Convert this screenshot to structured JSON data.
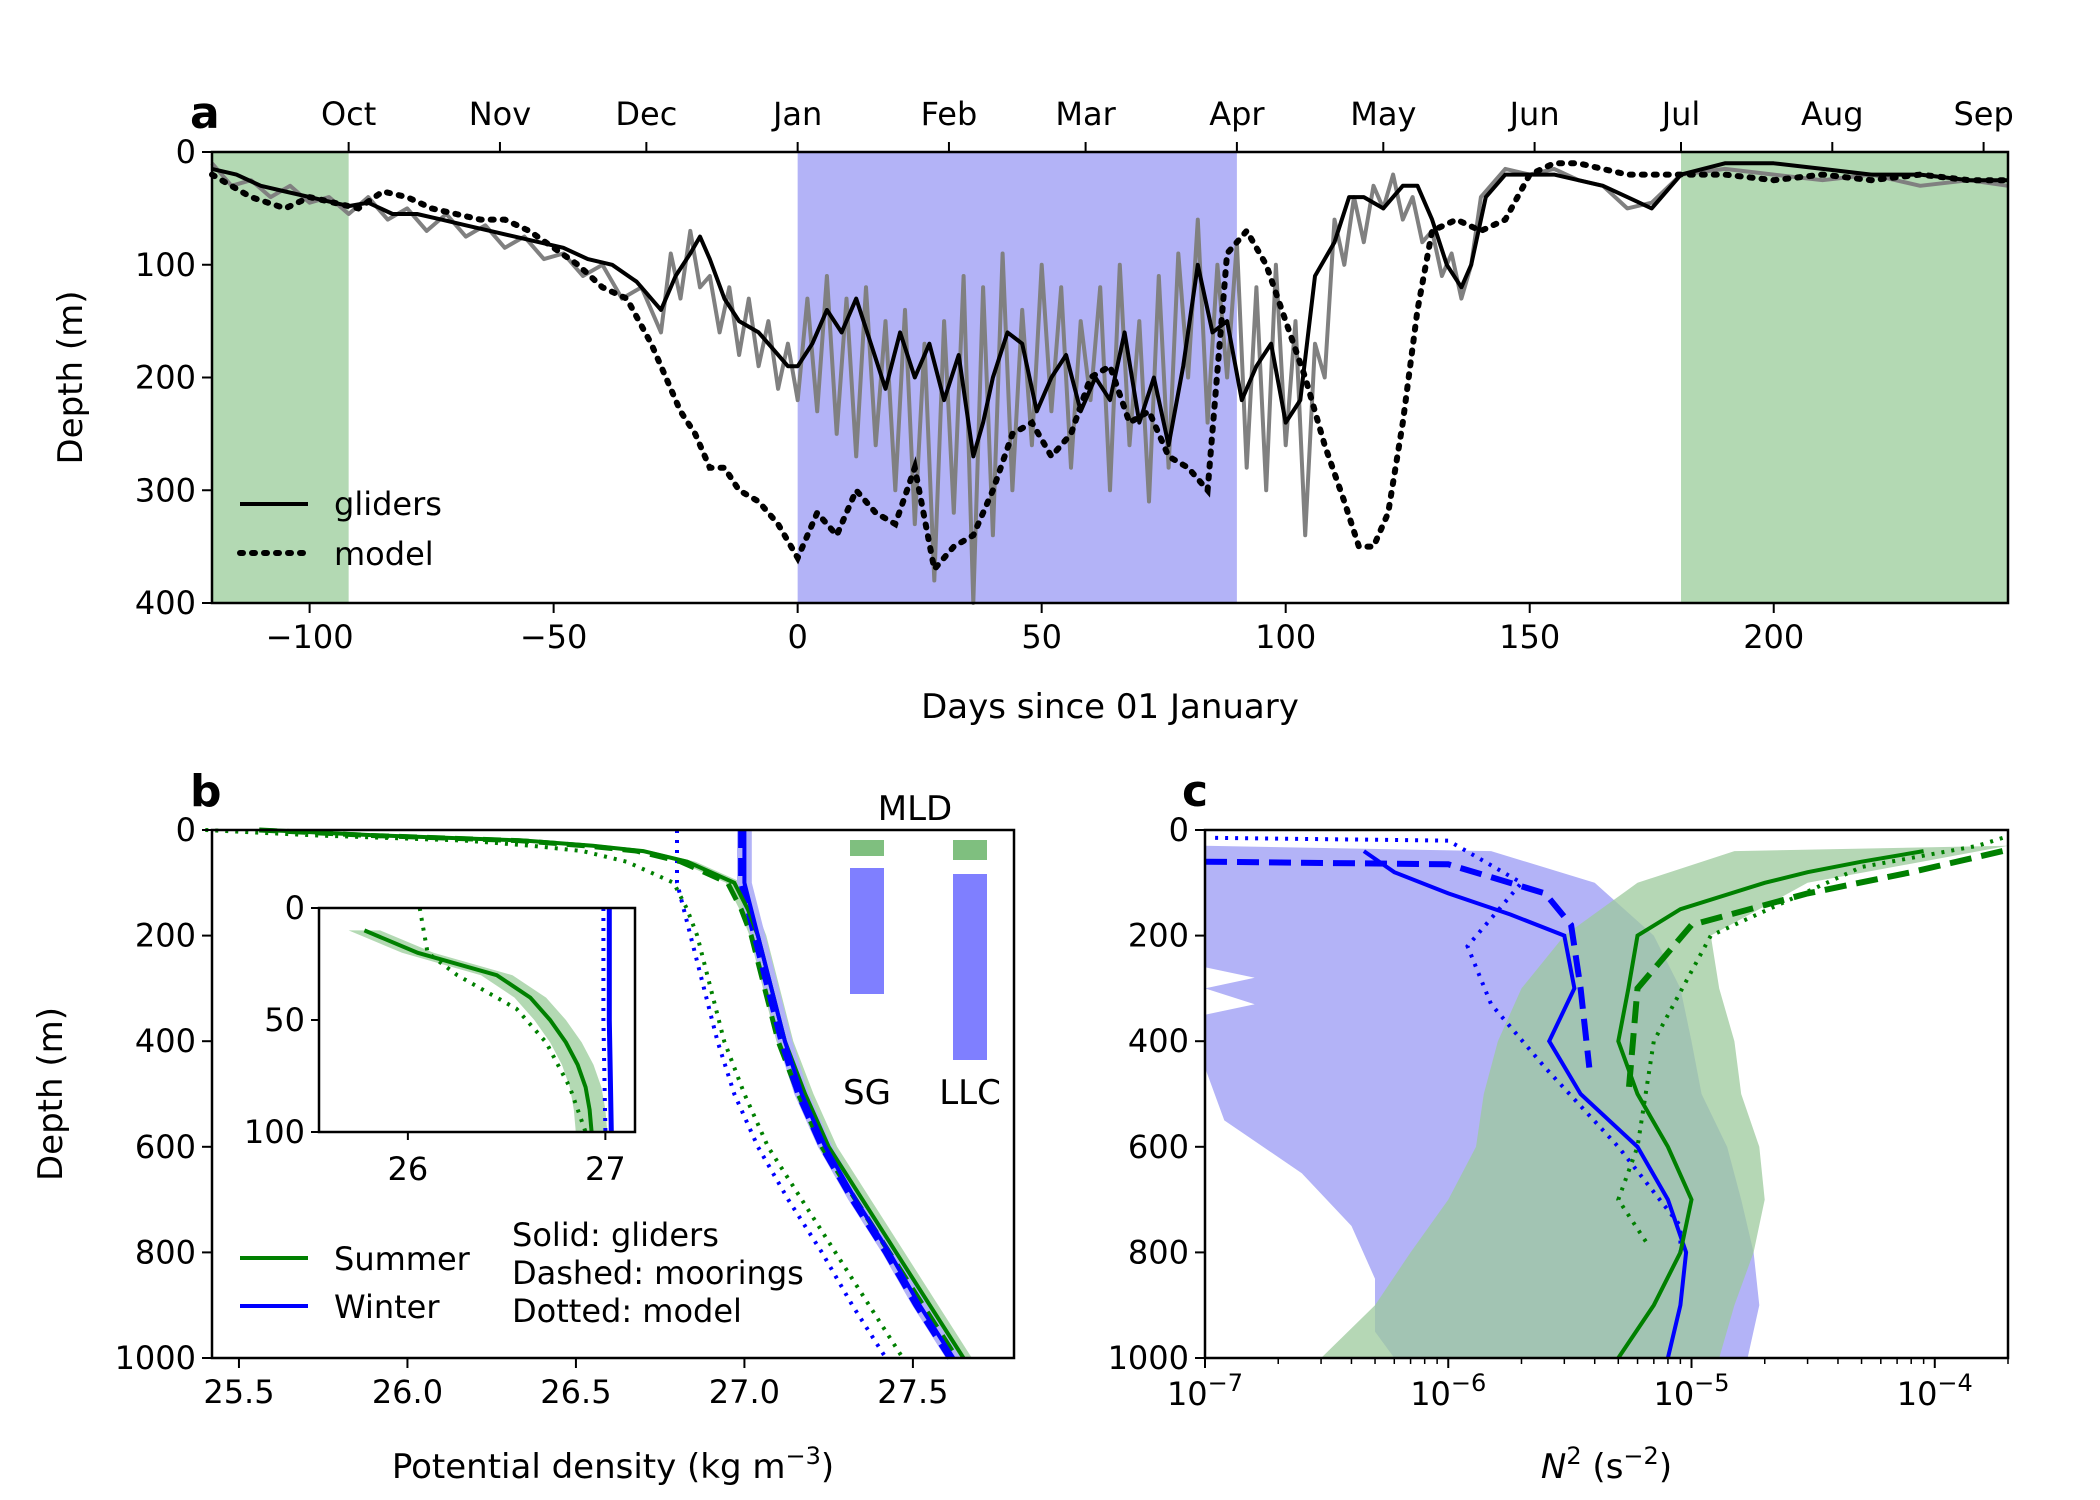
{
  "chart_data": [
    {
      "id": "a",
      "panel_label": "a",
      "type": "line",
      "xlabel": "Days since 01 January",
      "ylabel": "Depth (m)",
      "xlim": [
        -120,
        248
      ],
      "ylim": [
        400,
        0
      ],
      "xticks": [
        -100,
        -50,
        0,
        50,
        100,
        150,
        200
      ],
      "yticks": [
        0,
        100,
        200,
        300,
        400
      ],
      "top_axis": {
        "labels": [
          "Oct",
          "Nov",
          "Dec",
          "Jan",
          "Feb",
          "Mar",
          "Apr",
          "May",
          "Jun",
          "Jul",
          "Aug",
          "Sep"
        ],
        "days": [
          -92,
          -61,
          -31,
          0,
          31,
          59,
          90,
          120,
          151,
          181,
          212,
          243
        ]
      },
      "shaded_periods": [
        {
          "start": -120,
          "end": -92,
          "color": "#b3d9b3"
        },
        {
          "start": 0,
          "end": 90,
          "color": "#b3b3f7"
        },
        {
          "start": 181,
          "end": 248,
          "color": "#b3d9b3"
        }
      ],
      "legend_position": "lower left",
      "series": [
        {
          "name": "gliders",
          "style": "solid",
          "color": "#000000",
          "x": [
            -120,
            -115,
            -110,
            -105,
            -100,
            -95,
            -92,
            -88,
            -83,
            -78,
            -73,
            -68,
            -63,
            -58,
            -53,
            -48,
            -43,
            -38,
            -33,
            -28,
            -25,
            -22,
            -20,
            -18,
            -15,
            -12,
            -8,
            -5,
            -2,
            0,
            3,
            6,
            9,
            12,
            15,
            18,
            21,
            24,
            27,
            30,
            33,
            36,
            38,
            40,
            43,
            46,
            49,
            52,
            55,
            58,
            61,
            64,
            67,
            70,
            73,
            76,
            79,
            82,
            85,
            88,
            91,
            94,
            97,
            100,
            103,
            106,
            110,
            113,
            116,
            120,
            124,
            127,
            130,
            133,
            136,
            138,
            141,
            145,
            150,
            155,
            160,
            165,
            170,
            175,
            181,
            190,
            200,
            210,
            220,
            230,
            240,
            248
          ],
          "y": [
            15,
            20,
            30,
            35,
            40,
            45,
            48,
            45,
            55,
            55,
            60,
            65,
            70,
            75,
            80,
            85,
            95,
            100,
            115,
            140,
            110,
            90,
            75,
            95,
            130,
            150,
            160,
            175,
            190,
            190,
            170,
            140,
            160,
            130,
            170,
            210,
            160,
            200,
            170,
            220,
            180,
            270,
            240,
            200,
            160,
            170,
            230,
            200,
            180,
            230,
            200,
            220,
            160,
            240,
            200,
            260,
            190,
            100,
            160,
            150,
            220,
            190,
            170,
            240,
            220,
            110,
            80,
            40,
            40,
            50,
            30,
            30,
            60,
            100,
            120,
            100,
            40,
            20,
            20,
            20,
            25,
            30,
            40,
            50,
            20,
            10,
            10,
            15,
            20,
            20,
            25,
            25
          ]
        },
        {
          "name": "model",
          "style": "dotted",
          "color": "#000000",
          "x": [
            -120,
            -112,
            -105,
            -100,
            -95,
            -90,
            -85,
            -80,
            -75,
            -70,
            -65,
            -60,
            -55,
            -50,
            -45,
            -40,
            -35,
            -30,
            -27,
            -24,
            -21,
            -18,
            -15,
            -12,
            -8,
            -4,
            0,
            4,
            8,
            12,
            16,
            20,
            24,
            28,
            32,
            36,
            40,
            44,
            48,
            52,
            56,
            60,
            64,
            68,
            72,
            76,
            80,
            84,
            88,
            92,
            96,
            100,
            104,
            108,
            112,
            115,
            118,
            121,
            124,
            127,
            130,
            135,
            140,
            145,
            150,
            155,
            160,
            170,
            181,
            190,
            200,
            210,
            220,
            230,
            240,
            248
          ],
          "y": [
            20,
            40,
            50,
            40,
            45,
            50,
            35,
            40,
            50,
            55,
            60,
            60,
            70,
            85,
            100,
            120,
            130,
            170,
            200,
            230,
            250,
            280,
            280,
            300,
            310,
            330,
            360,
            320,
            340,
            300,
            320,
            330,
            280,
            370,
            350,
            340,
            300,
            250,
            240,
            270,
            250,
            200,
            190,
            240,
            230,
            270,
            280,
            300,
            90,
            70,
            100,
            150,
            200,
            260,
            310,
            350,
            350,
            320,
            240,
            140,
            70,
            60,
            70,
            60,
            20,
            10,
            10,
            20,
            20,
            20,
            25,
            20,
            25,
            20,
            25,
            25
          ]
        },
        {
          "name": "",
          "style": "noisy-gray",
          "color": "#808080",
          "x": [
            -120,
            -116,
            -112,
            -108,
            -104,
            -100,
            -96,
            -92,
            -88,
            -84,
            -80,
            -76,
            -72,
            -68,
            -64,
            -60,
            -56,
            -52,
            -48,
            -44,
            -40,
            -36,
            -32,
            -28,
            -26,
            -24,
            -22,
            -20,
            -18,
            -16,
            -14,
            -12,
            -10,
            -8,
            -6,
            -4,
            -2,
            0,
            2,
            4,
            6,
            8,
            10,
            12,
            14,
            16,
            18,
            20,
            22,
            24,
            26,
            28,
            30,
            32,
            34,
            36,
            38,
            40,
            42,
            44,
            46,
            48,
            50,
            52,
            54,
            56,
            58,
            60,
            62,
            64,
            66,
            68,
            70,
            72,
            74,
            76,
            78,
            80,
            82,
            84,
            86,
            88,
            90,
            92,
            94,
            96,
            98,
            100,
            102,
            104,
            106,
            108,
            110,
            112,
            114,
            116,
            118,
            120,
            122,
            124,
            126,
            128,
            130,
            132,
            134,
            136,
            138,
            140,
            145,
            150,
            155,
            160,
            165,
            170,
            175,
            181,
            190,
            200,
            210,
            220,
            230,
            240,
            248
          ],
          "y": [
            10,
            30,
            25,
            40,
            30,
            45,
            40,
            55,
            40,
            60,
            50,
            70,
            55,
            75,
            65,
            85,
            75,
            95,
            90,
            110,
            100,
            130,
            120,
            160,
            90,
            130,
            70,
            120,
            110,
            160,
            120,
            180,
            130,
            190,
            150,
            210,
            170,
            220,
            130,
            230,
            110,
            250,
            130,
            270,
            120,
            260,
            150,
            300,
            140,
            330,
            170,
            380,
            150,
            320,
            110,
            400,
            120,
            340,
            90,
            300,
            140,
            260,
            100,
            230,
            120,
            280,
            150,
            220,
            120,
            300,
            100,
            260,
            150,
            310,
            110,
            280,
            90,
            200,
            60,
            240,
            100,
            200,
            80,
            280,
            120,
            300,
            100,
            260,
            150,
            340,
            170,
            200,
            60,
            100,
            40,
            80,
            30,
            50,
            20,
            60,
            40,
            80,
            70,
            110,
            90,
            130,
            100,
            40,
            15,
            20,
            15,
            25,
            30,
            50,
            45,
            20,
            15,
            20,
            25,
            20,
            30,
            25,
            30
          ]
        }
      ]
    },
    {
      "id": "b",
      "panel_label": "b",
      "type": "line",
      "xlabel": "Potential density (kg m",
      "xlabel_sup": "−3",
      "xlabel_end": ")",
      "ylabel": "Depth (m)",
      "xlim": [
        25.42,
        27.8
      ],
      "ylim": [
        1000,
        0
      ],
      "xticks": [
        25.5,
        26.0,
        26.5,
        27.0,
        27.5
      ],
      "xtick_labels": [
        "25.5",
        "26.0",
        "26.5",
        "27.0",
        "27.5"
      ],
      "yticks": [
        0,
        200,
        400,
        600,
        800,
        1000
      ],
      "legend_position": "lower left",
      "legend_notes": [
        "Solid: gliders",
        "Dashed: moorings",
        "Dotted: model"
      ],
      "series": [
        {
          "name": "Summer",
          "style": "solid",
          "color": "#008000",
          "depth": [
            0,
            10,
            20,
            30,
            40,
            60,
            80,
            100,
            150,
            200,
            300,
            400,
            500,
            600,
            700,
            800,
            900,
            1000
          ],
          "density": [
            25.58,
            25.9,
            26.35,
            26.55,
            26.7,
            26.83,
            26.9,
            26.97,
            27.01,
            27.04,
            27.08,
            27.12,
            27.18,
            27.25,
            27.35,
            27.45,
            27.55,
            27.65
          ]
        },
        {
          "name": "Winter",
          "style": "solid",
          "color": "#0000ff",
          "depth": [
            0,
            100,
            200,
            300,
            400,
            500,
            600,
            700,
            800,
            900,
            1000
          ],
          "density": [
            27.0,
            27.0,
            27.04,
            27.08,
            27.12,
            27.17,
            27.24,
            27.33,
            27.43,
            27.52,
            27.62
          ]
        }
      ],
      "mld_bars": {
        "title": "MLD",
        "labels": [
          "SG",
          "LLC"
        ],
        "summer_color": "#7fbf7f",
        "winter_color": "#7f7fff"
      },
      "inset": {
        "xlim": [
          25.55,
          27.15
        ],
        "ylim": [
          100,
          0
        ],
        "xticks": [
          26,
          27
        ],
        "yticks": [
          0,
          50,
          100
        ]
      }
    },
    {
      "id": "c",
      "panel_label": "c",
      "type": "line",
      "xlabel": "N",
      "xlabel_sup": "2",
      "xlabel_end": " (s",
      "xlabel_sup2": "−2",
      "xlabel_end2": ")",
      "ylabel": "",
      "xscale": "log",
      "xlim": [
        1e-07,
        0.0002
      ],
      "ylim": [
        1000,
        0
      ],
      "xticks_exp": [
        -7,
        -6,
        -5,
        -4
      ],
      "yticks": [
        0,
        200,
        400,
        600,
        800,
        1000
      ],
      "series": [
        {
          "name": "Summer",
          "style": "solid",
          "color": "#008000",
          "depth": [
            40,
            60,
            80,
            100,
            150,
            200,
            300,
            400,
            500,
            600,
            700,
            800,
            900,
            1000
          ],
          "n2": [
            9e-05,
            5e-05,
            3e-05,
            2e-05,
            9e-06,
            6e-06,
            5.5e-06,
            5e-06,
            6e-06,
            8e-06,
            1e-05,
            9e-06,
            7e-06,
            5e-06
          ]
        },
        {
          "name": "Winter",
          "style": "solid",
          "color": "#0000ff",
          "depth": [
            40,
            80,
            120,
            160,
            200,
            300,
            400,
            500,
            600,
            700,
            800,
            900,
            1000
          ],
          "n2": [
            4.5e-07,
            6e-07,
            1e-06,
            1.8e-06,
            3e-06,
            3.3e-06,
            2.6e-06,
            3.5e-06,
            6e-06,
            8e-06,
            9.5e-06,
            9e-06,
            8e-06
          ]
        }
      ]
    }
  ]
}
